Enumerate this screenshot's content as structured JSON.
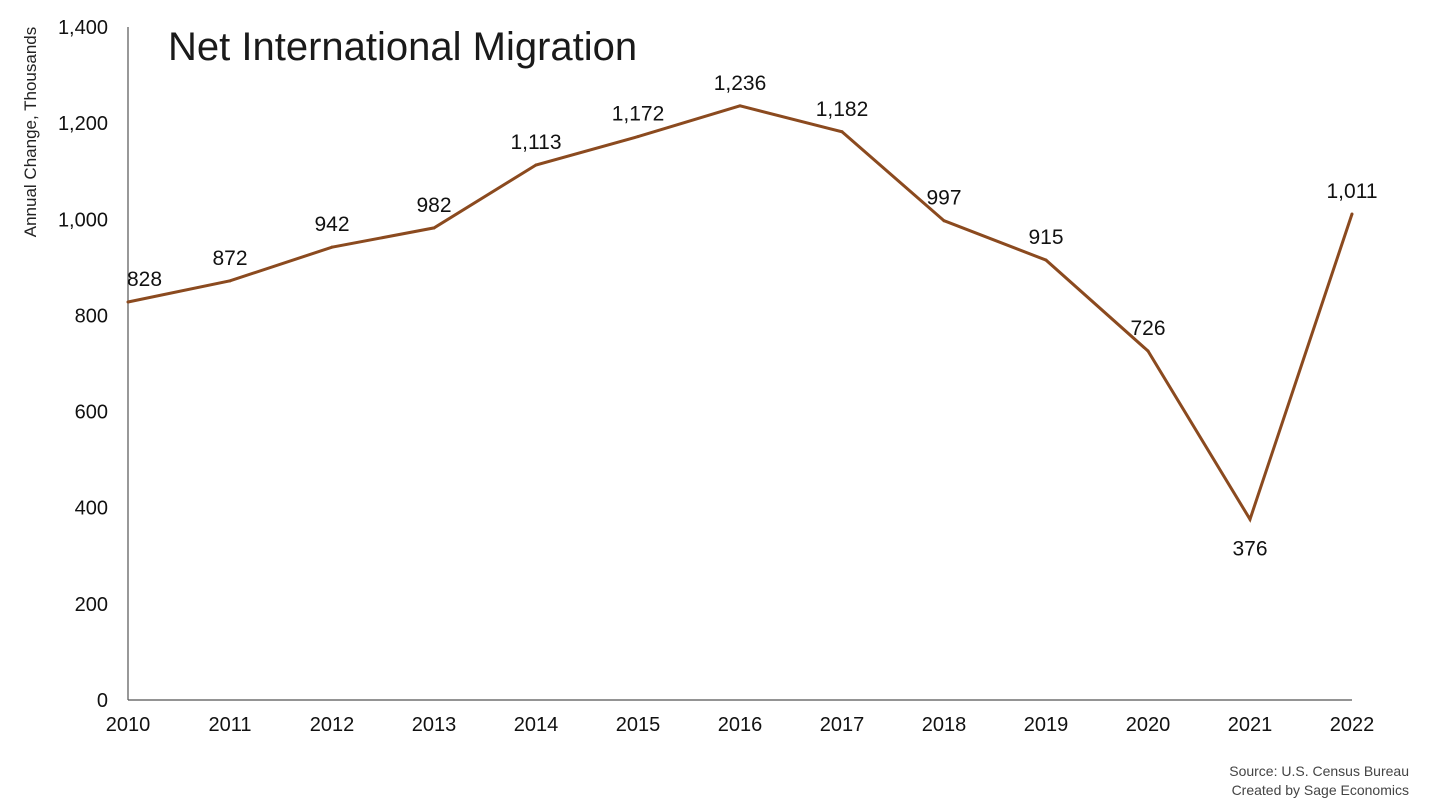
{
  "source_line_1": "Source: U.S. Census Bureau",
  "source_line_2": "Created by Sage Economics",
  "chart_data": {
    "type": "line",
    "title": "Net International Migration",
    "xlabel": "",
    "ylabel": "Annual Change, Thousands",
    "x": [
      "2010",
      "2011",
      "2012",
      "2013",
      "2014",
      "2015",
      "2016",
      "2017",
      "2018",
      "2019",
      "2020",
      "2021",
      "2022"
    ],
    "series": [
      {
        "values": [
          828,
          872,
          942,
          982,
          1113,
          1172,
          1236,
          1182,
          997,
          915,
          726,
          376,
          1011
        ],
        "data_labels": [
          "828",
          "872",
          "942",
          "982",
          "1,113",
          "1,172",
          "1,236",
          "1,182",
          "997",
          "915",
          "726",
          "376",
          "1,011"
        ],
        "color": "#8B4A1F"
      }
    ],
    "ylim": [
      0,
      1400
    ],
    "yticks": [
      0,
      200,
      400,
      600,
      800,
      1000,
      1200,
      1400
    ],
    "ytick_labels": [
      "0",
      "200",
      "400",
      "600",
      "800",
      "1,000",
      "1,200",
      "1,400"
    ],
    "grid": false,
    "legend": "none"
  }
}
